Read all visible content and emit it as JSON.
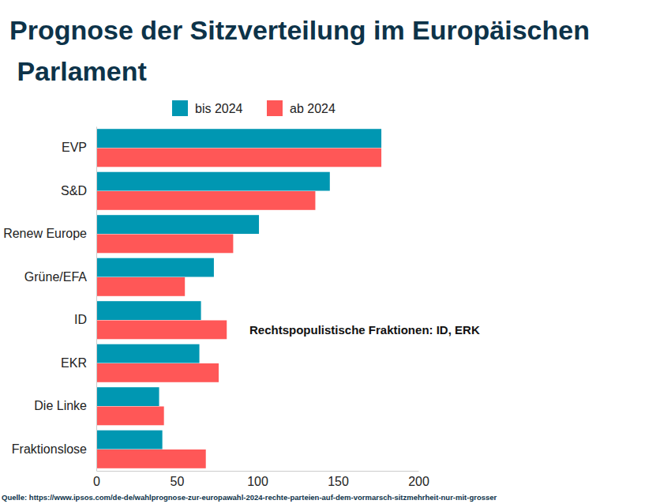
{
  "chart_data": {
    "type": "bar",
    "orientation": "horizontal",
    "title": "Prognose der Sitzverteilung im Europäischen Parlament",
    "annotation": "Rechtspopulistische Fraktionen: ID, ERK",
    "source": "Quelle: https://www.ipsos.com/de-de/wahlprognose-zur-europawahl-2024-rechte-parteien-auf-dem-vormarsch-sitzmehrheit-nur-mit-grosser",
    "categories": [
      "EVP",
      "S&D",
      "Renew Europe",
      "Grüne/EFA",
      "ID",
      "EKR",
      "Die Linke",
      "Fraktionslose"
    ],
    "series": [
      {
        "name": "bis 2024",
        "color": "#0097b2",
        "values": [
          177,
          145,
          101,
          73,
          65,
          64,
          39,
          41
        ]
      },
      {
        "name": "ab 2024",
        "color": "#ff5757",
        "values": [
          177,
          136,
          85,
          55,
          81,
          76,
          42,
          68
        ]
      }
    ],
    "xlim": [
      0,
      200
    ],
    "xticks": [
      0,
      50,
      100,
      150,
      200
    ],
    "grid": false,
    "legend": "top"
  }
}
